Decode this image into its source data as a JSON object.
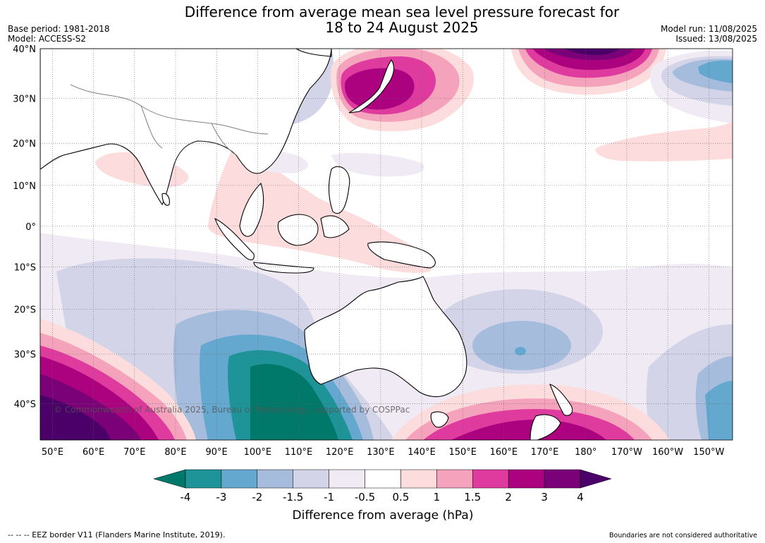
{
  "title_line1": "Difference from average mean sea level pressure forecast for",
  "title_line2": "18 to 24 August 2025",
  "base_period": "Base period: 1981-2018",
  "model": "Model: ACCESS-S2",
  "model_run": "Model run: 11/08/2025",
  "issued": "Issued: 13/08/2025",
  "copyright": "© Commonwealth of Australia 2025, Bureau of Meteorology, supported by COSPPac",
  "lat_labels": [
    {
      "label": "40°N",
      "lat": 40
    },
    {
      "label": "30°N",
      "lat": 30
    },
    {
      "label": "20°N",
      "lat": 20
    },
    {
      "label": "10°N",
      "lat": 10
    },
    {
      "label": "0°",
      "lat": 0
    },
    {
      "label": "10°S",
      "lat": -10
    },
    {
      "label": "20°S",
      "lat": -20
    },
    {
      "label": "30°S",
      "lat": -30
    },
    {
      "label": "40°S",
      "lat": -40
    }
  ],
  "lon_labels": [
    {
      "label": "50°E",
      "lon": 50
    },
    {
      "label": "60°E",
      "lon": 60
    },
    {
      "label": "70°E",
      "lon": 70
    },
    {
      "label": "80°E",
      "lon": 80
    },
    {
      "label": "90°E",
      "lon": 90
    },
    {
      "label": "100°E",
      "lon": 100
    },
    {
      "label": "110°E",
      "lon": 110
    },
    {
      "label": "120°E",
      "lon": 120
    },
    {
      "label": "130°E",
      "lon": 130
    },
    {
      "label": "140°E",
      "lon": 140
    },
    {
      "label": "150°E",
      "lon": 150
    },
    {
      "label": "160°E",
      "lon": 160
    },
    {
      "label": "170°E",
      "lon": 170
    },
    {
      "label": "180°",
      "lon": 180
    },
    {
      "label": "170°W",
      "lon": 190
    },
    {
      "label": "160°W",
      "lon": 200
    },
    {
      "label": "150°W",
      "lon": 210
    }
  ],
  "colorbar": {
    "label": "Difference from average (hPa)",
    "ticks": [
      "-4",
      "-3",
      "-2",
      "-1.5",
      "-1",
      "-0.5",
      "0.5",
      "1",
      "1.5",
      "2",
      "3",
      "4"
    ],
    "colors": [
      "#1e9498",
      "#64a8d0",
      "#a6bcdc",
      "#d4d4e8",
      "#f0eaf4",
      "#ffffff",
      "#fcdcdc",
      "#f5a3bd",
      "#df3b9e",
      "#ad0280",
      "#7a0177"
    ],
    "under_color": "#00796b",
    "over_color": "#4a0068"
  },
  "legend_eez": "--  --  -- EEZ border V11 (Flanders Marine Institute, 2019).",
  "boundaries_note": "Boundaries are not considered authoritative"
}
